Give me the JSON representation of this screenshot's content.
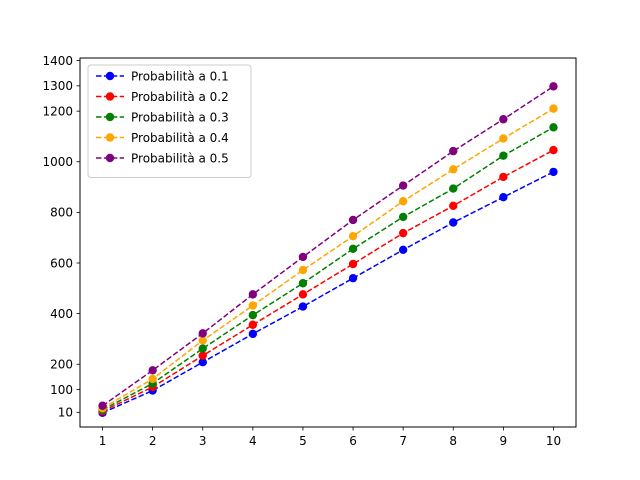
{
  "chart_data": {
    "type": "line",
    "x": [
      1,
      2,
      3,
      4,
      5,
      6,
      7,
      8,
      9,
      10
    ],
    "x_ticks": [
      "1",
      "2",
      "3",
      "4",
      "5",
      "6",
      "7",
      "8",
      "9",
      "10"
    ],
    "y_ticks": [
      {
        "value": 10,
        "label": "10"
      },
      {
        "value": 100,
        "label": "100"
      },
      {
        "value": 200,
        "label": "200"
      },
      {
        "value": 400,
        "label": "400"
      },
      {
        "value": 600,
        "label": "600"
      },
      {
        "value": 800,
        "label": "800"
      },
      {
        "value": 1000,
        "label": "1000"
      },
      {
        "value": 1200,
        "label": "1200"
      },
      {
        "value": 1300,
        "label": "1300"
      },
      {
        "value": 1400,
        "label": "1400"
      }
    ],
    "xlim": [
      0.55,
      10.45
    ],
    "ylim": [
      -48,
      1410
    ],
    "grid": false,
    "legend_position": "top-left",
    "line_style": "dashed",
    "marker": "circle",
    "series": [
      {
        "name": "Probabilità a 0.1",
        "color": "#0000ff",
        "values": [
          8,
          96,
          208,
          320,
          428,
          540,
          652,
          760,
          860,
          960
        ]
      },
      {
        "name": "Probabilità a 0.2",
        "color": "#ff0000",
        "values": [
          14,
          110,
          234,
          356,
          476,
          596,
          718,
          826,
          940,
          1046
        ]
      },
      {
        "name": "Probabilità a 0.3",
        "color": "#008000",
        "values": [
          20,
          124,
          262,
          394,
          520,
          656,
          782,
          894,
          1024,
          1136
        ]
      },
      {
        "name": "Probabilità a 0.4",
        "color": "#ffa500",
        "values": [
          26,
          142,
          294,
          432,
          572,
          706,
          844,
          970,
          1092,
          1210
        ]
      },
      {
        "name": "Probabilità a 0.5",
        "color": "#800080",
        "values": [
          36,
          176,
          322,
          476,
          624,
          770,
          906,
          1042,
          1168,
          1298
        ]
      }
    ]
  }
}
